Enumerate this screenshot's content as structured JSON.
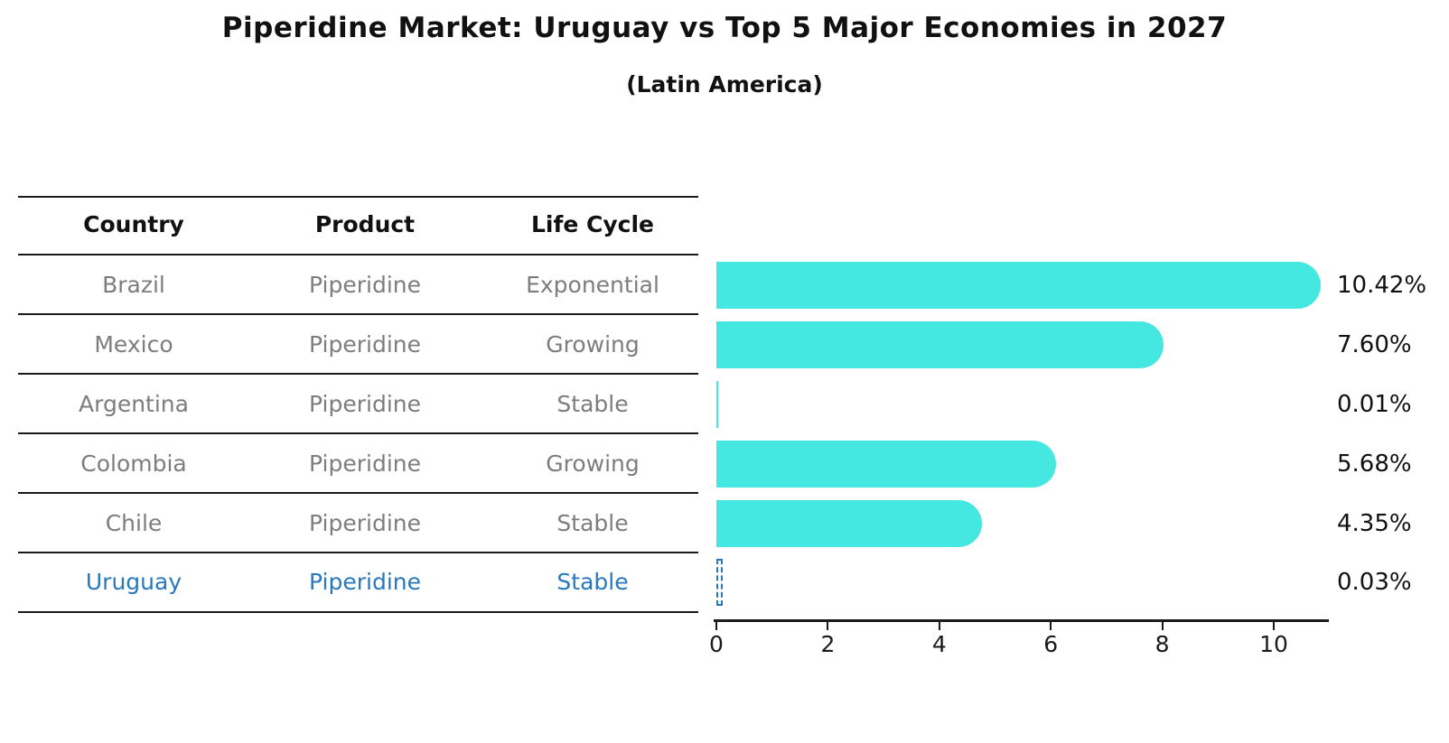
{
  "title": "Piperidine Market: Uruguay vs Top 5 Major Economies in 2027",
  "subtitle": "(Latin America)",
  "table": {
    "headers": [
      "Country",
      "Product",
      "Life Cycle"
    ],
    "rows": [
      {
        "country": "Brazil",
        "product": "Piperidine",
        "life_cycle": "Exponential",
        "highlight": false
      },
      {
        "country": "Mexico",
        "product": "Piperidine",
        "life_cycle": "Growing",
        "highlight": false
      },
      {
        "country": "Argentina",
        "product": "Piperidine",
        "life_cycle": "Stable",
        "highlight": false
      },
      {
        "country": "Colombia",
        "product": "Piperidine",
        "life_cycle": "Growing",
        "highlight": false
      },
      {
        "country": "Chile",
        "product": "Piperidine",
        "life_cycle": "Stable",
        "highlight": false
      },
      {
        "country": "Uruguay",
        "product": "Piperidine",
        "life_cycle": "Stable",
        "highlight": true
      }
    ]
  },
  "chart_data": {
    "type": "bar",
    "orientation": "horizontal",
    "title": "Piperidine Market: Uruguay vs Top 5 Major Economies in 2027",
    "subtitle": "(Latin America)",
    "categories": [
      "Brazil",
      "Mexico",
      "Argentina",
      "Colombia",
      "Chile",
      "Uruguay"
    ],
    "values": [
      10.42,
      7.6,
      0.01,
      5.68,
      4.35,
      0.03
    ],
    "value_labels": [
      "10.42%",
      "7.60%",
      "0.01%",
      "5.68%",
      "4.35%",
      "0.03%"
    ],
    "x_ticks": [
      "0",
      "2",
      "4",
      "6",
      "8",
      "10"
    ],
    "x_tick_values": [
      0,
      2,
      4,
      6,
      8,
      10
    ],
    "xlim": [
      0,
      10.97
    ],
    "grid": false,
    "legend": "none",
    "bar_color": "#45e7e1",
    "highlight_color": "#2878be",
    "highlight_index": 5,
    "highlight_style": "dashed-outline"
  }
}
